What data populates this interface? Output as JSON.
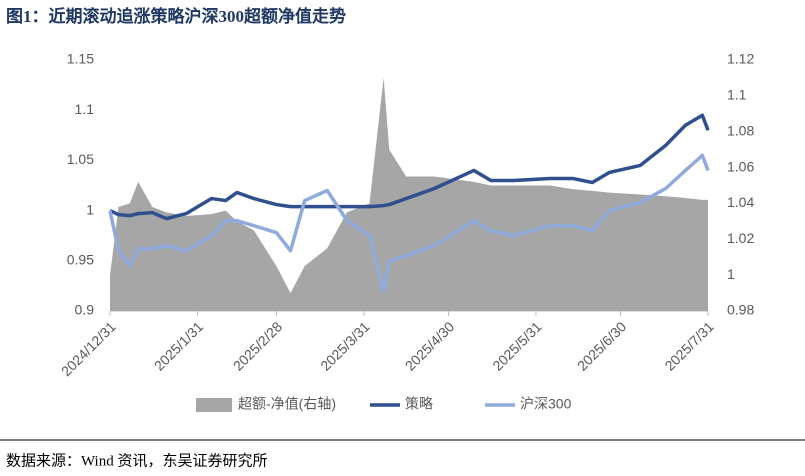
{
  "title": "图1：近期滚动追涨策略沪深300超额净值走势",
  "source": "数据来源：Wind 资讯，东吴证券研究所",
  "chart_data": {
    "type": "line",
    "x": [
      "2024/12/31",
      "2025/1/3",
      "2025/1/7",
      "2025/1/10",
      "2025/1/15",
      "2025/1/20",
      "2025/1/27",
      "2025/2/5",
      "2025/2/10",
      "2025/2/14",
      "2025/2/20",
      "2025/2/28",
      "2025/3/5",
      "2025/3/10",
      "2025/3/18",
      "2025/3/25",
      "2025/4/2",
      "2025/4/7",
      "2025/4/9",
      "2025/4/15",
      "2025/4/25",
      "2025/5/9",
      "2025/5/15",
      "2025/5/23",
      "2025/6/5",
      "2025/6/13",
      "2025/6/20",
      "2025/6/26",
      "2025/7/7",
      "2025/7/16",
      "2025/7/23",
      "2025/7/29",
      "2025/7/31"
    ],
    "series": [
      {
        "name": "超额-净值(右轴)",
        "type": "area",
        "axis": "y2",
        "color": "#a6a6a6",
        "values": [
          1.0,
          1.038,
          1.04,
          1.052,
          1.038,
          1.035,
          1.033,
          1.034,
          1.036,
          1.03,
          1.025,
          1.005,
          0.99,
          1.005,
          1.015,
          1.035,
          1.04,
          1.11,
          1.07,
          1.055,
          1.055,
          1.052,
          1.05,
          1.05,
          1.05,
          1.048,
          1.047,
          1.046,
          1.045,
          1.044,
          1.043,
          1.042,
          1.042
        ]
      },
      {
        "name": "策略",
        "type": "line",
        "color": "#2f4f8f",
        "values": [
          1.0,
          0.996,
          0.995,
          0.997,
          0.998,
          0.992,
          0.997,
          1.012,
          1.01,
          1.018,
          1.012,
          1.006,
          1.004,
          1.004,
          1.004,
          1.004,
          1.004,
          1.005,
          1.006,
          1.012,
          1.022,
          1.04,
          1.03,
          1.03,
          1.032,
          1.032,
          1.028,
          1.038,
          1.045,
          1.065,
          1.085,
          1.095,
          1.08
        ]
      },
      {
        "name": "沪深300",
        "type": "line",
        "color": "#8faadc",
        "values": [
          1.0,
          0.96,
          0.945,
          0.962,
          0.962,
          0.965,
          0.96,
          0.975,
          0.99,
          0.99,
          0.985,
          0.978,
          0.96,
          1.01,
          1.02,
          0.99,
          0.975,
          0.92,
          0.95,
          0.955,
          0.965,
          0.99,
          0.98,
          0.975,
          0.985,
          0.985,
          0.98,
          1.0,
          1.008,
          1.022,
          1.04,
          1.055,
          1.04
        ]
      }
    ],
    "xlim": [
      "2024/12/31",
      "2025/7/31"
    ],
    "xticks": [
      "2024/12/31",
      "2025/1/31",
      "2025/2/28",
      "2025/3/31",
      "2025/4/30",
      "2025/5/31",
      "2025/6/30",
      "2025/7/31"
    ],
    "ylim": [
      0.9,
      1.15
    ],
    "yticks": [
      0.9,
      0.95,
      1,
      1.05,
      1.1,
      1.15
    ],
    "y2lim": [
      0.98,
      1.12
    ],
    "y2ticks": [
      0.98,
      1,
      1.02,
      1.04,
      1.06,
      1.08,
      1.1,
      1.12
    ],
    "legend": "bottom"
  }
}
